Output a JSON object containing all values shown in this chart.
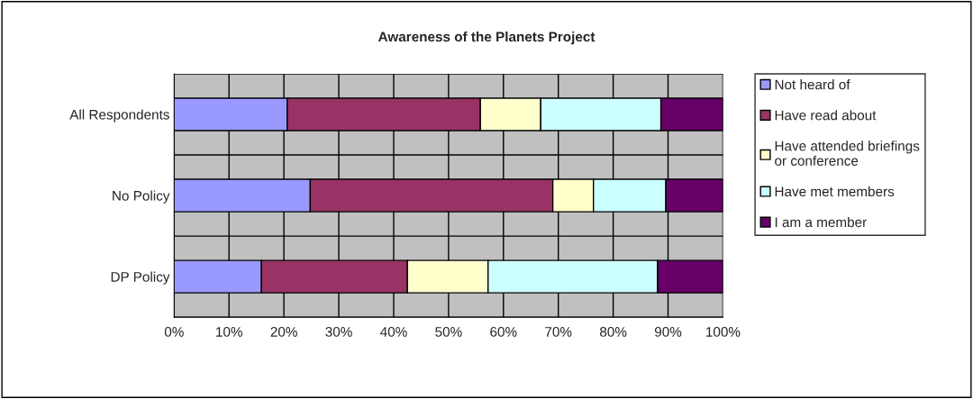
{
  "chart_data": {
    "type": "bar",
    "orientation": "horizontal",
    "stacked": true,
    "title": "Awareness of the Planets Project",
    "categories": [
      "All Respondents",
      "No Policy",
      "DP Policy"
    ],
    "series": [
      {
        "name": "Not heard of",
        "color": "#9999ff",
        "values": [
          20.6,
          24.8,
          15.9
        ]
      },
      {
        "name": "Have read about",
        "color": "#993366",
        "values": [
          35.2,
          44.2,
          26.6
        ]
      },
      {
        "name": "Have attended briefings\nor conference",
        "color": "#ffffcc",
        "values": [
          11.0,
          7.4,
          14.7
        ]
      },
      {
        "name": "Have met members",
        "color": "#ccffff",
        "values": [
          21.9,
          13.2,
          30.9
        ]
      },
      {
        "name": "I am a member",
        "color": "#660066",
        "values": [
          11.3,
          10.4,
          11.9
        ]
      }
    ],
    "xlim": [
      0,
      100
    ],
    "xticks": [
      {
        "value": 0,
        "label": "0%"
      },
      {
        "value": 10,
        "label": "10%"
      },
      {
        "value": 20,
        "label": "20%"
      },
      {
        "value": 30,
        "label": "30%"
      },
      {
        "value": 40,
        "label": "40%"
      },
      {
        "value": 50,
        "label": "50%"
      },
      {
        "value": 60,
        "label": "60%"
      },
      {
        "value": 70,
        "label": "70%"
      },
      {
        "value": 80,
        "label": "80%"
      },
      {
        "value": 90,
        "label": "90%"
      },
      {
        "value": 100,
        "label": "100%"
      }
    ],
    "grid": true,
    "legend": "right"
  }
}
